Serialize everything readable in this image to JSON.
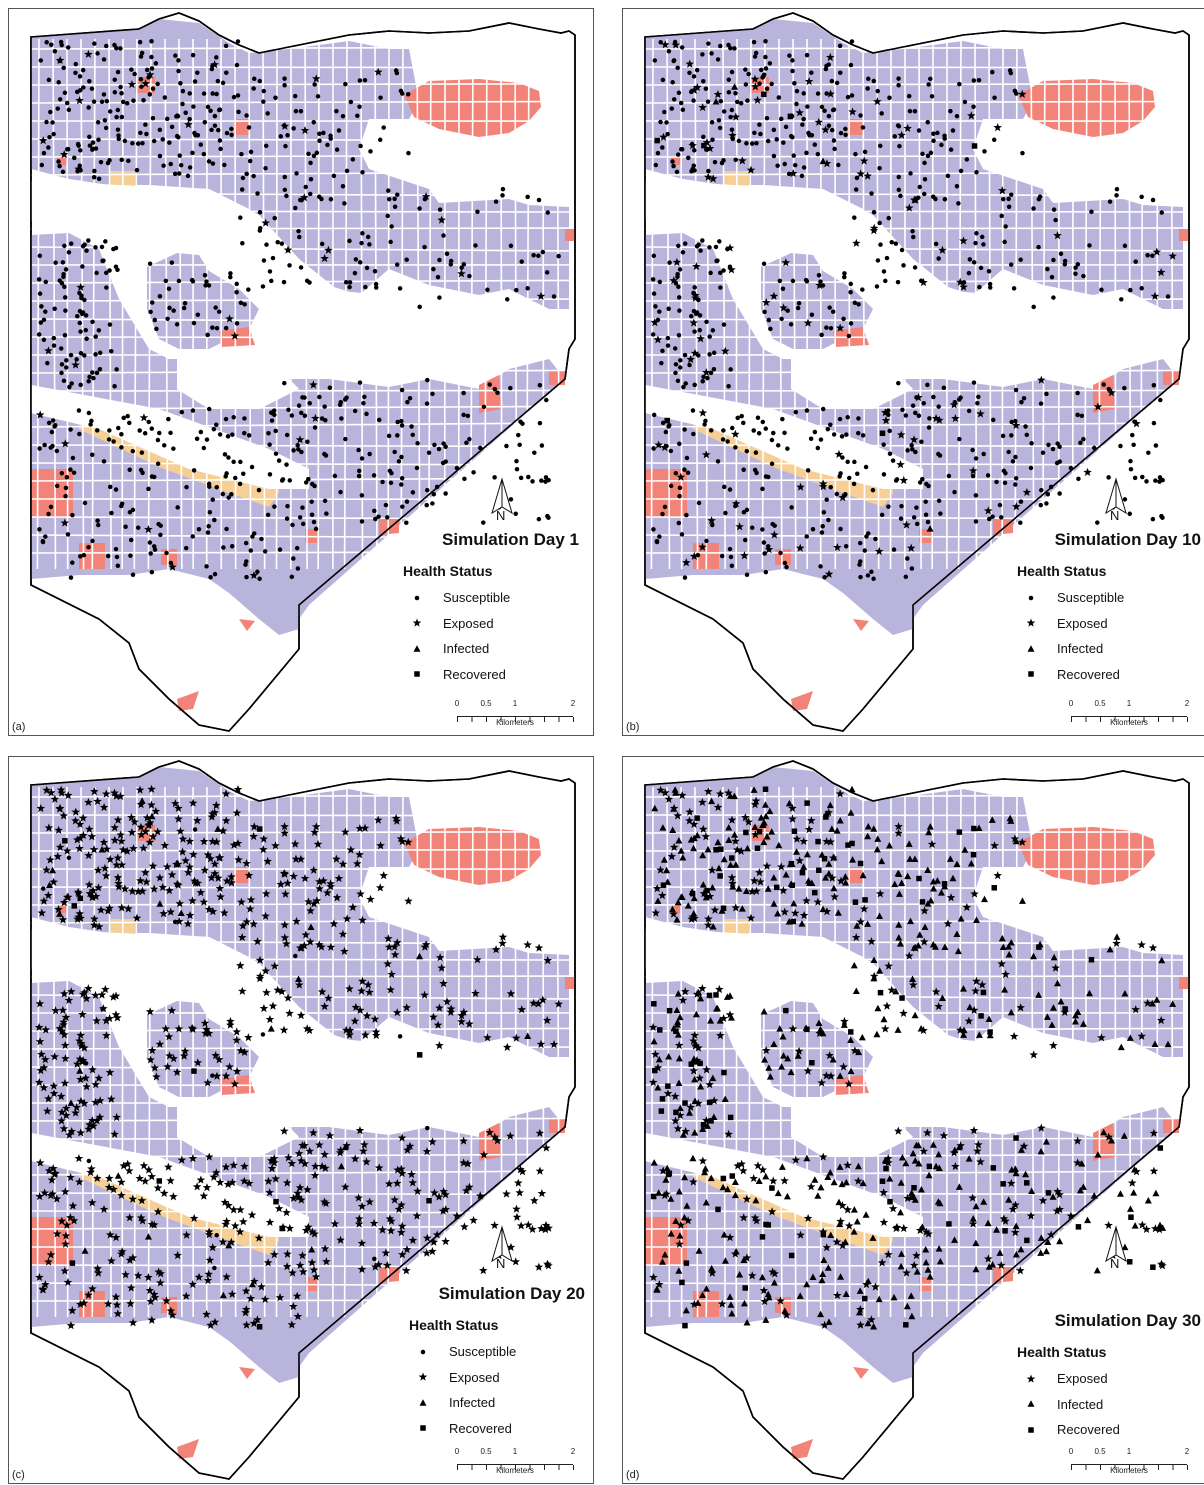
{
  "colors": {
    "residential": "#b9b4dc",
    "commercial": "#f28378",
    "institutional": "#f5cf96",
    "boundary": "#000000",
    "symbol": "#000000"
  },
  "legend_title": "Health Status",
  "scale": {
    "ticks": [
      "0",
      "0.5",
      "1",
      "2"
    ],
    "unit": "Kilometers"
  },
  "north_label": "N",
  "panels": [
    {
      "letter": "(a)",
      "title": "Simulation Day 1",
      "legend": [
        {
          "label": "Susceptible",
          "symbol": "dot"
        },
        {
          "label": "Exposed",
          "symbol": "star"
        },
        {
          "label": "Infected",
          "symbol": "triangle"
        },
        {
          "label": "Recovered",
          "symbol": "square"
        }
      ],
      "dominant_status": "Susceptible"
    },
    {
      "letter": "(b)",
      "title": "Simulation Day 10",
      "legend": [
        {
          "label": "Susceptible",
          "symbol": "dot"
        },
        {
          "label": "Exposed",
          "symbol": "star"
        },
        {
          "label": "Infected",
          "symbol": "triangle"
        },
        {
          "label": "Recovered",
          "symbol": "square"
        }
      ],
      "dominant_status": "Susceptible"
    },
    {
      "letter": "(c)",
      "title": "Simulation Day 20",
      "legend": [
        {
          "label": "Susceptible",
          "symbol": "dot"
        },
        {
          "label": "Exposed",
          "symbol": "star"
        },
        {
          "label": "Infected",
          "symbol": "triangle"
        },
        {
          "label": "Recovered",
          "symbol": "square"
        }
      ],
      "dominant_status": "Exposed"
    },
    {
      "letter": "(d)",
      "title": "Simulation Day 30",
      "legend": [
        {
          "label": "Exposed",
          "symbol": "star"
        },
        {
          "label": "Infected",
          "symbol": "triangle"
        },
        {
          "label": "Recovered",
          "symbol": "square"
        }
      ],
      "dominant_status": "Infected"
    }
  ]
}
